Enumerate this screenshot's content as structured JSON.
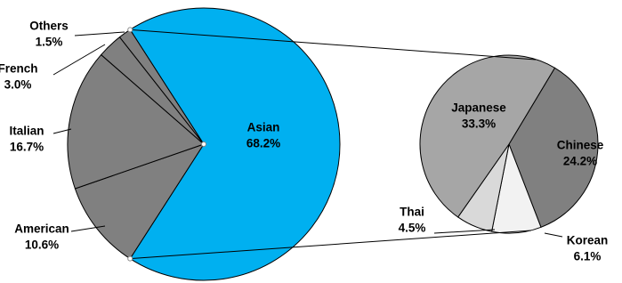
{
  "chart_data": [
    {
      "type": "pie",
      "categories": [
        "Asian",
        "American",
        "Italian",
        "French",
        "Others"
      ],
      "values": [
        68.2,
        10.6,
        16.7,
        3.0,
        1.5
      ],
      "value_labels": [
        "68.2%",
        "10.6%",
        "16.7%",
        "3.0%",
        "1.5%"
      ],
      "colors": [
        "#00b0f0",
        "#808080",
        "#808080",
        "#808080",
        "#808080"
      ]
    },
    {
      "type": "pie",
      "categories": [
        "Chinese",
        "Korean",
        "Thai",
        "Japanese"
      ],
      "values": [
        24.2,
        6.1,
        4.5,
        33.3
      ],
      "value_labels": [
        "24.2%",
        "6.1%",
        "4.5%",
        "33.3%"
      ],
      "colors": [
        "#808080",
        "#f2f2f2",
        "#d9d9d9",
        "#a6a6a6"
      ]
    }
  ]
}
